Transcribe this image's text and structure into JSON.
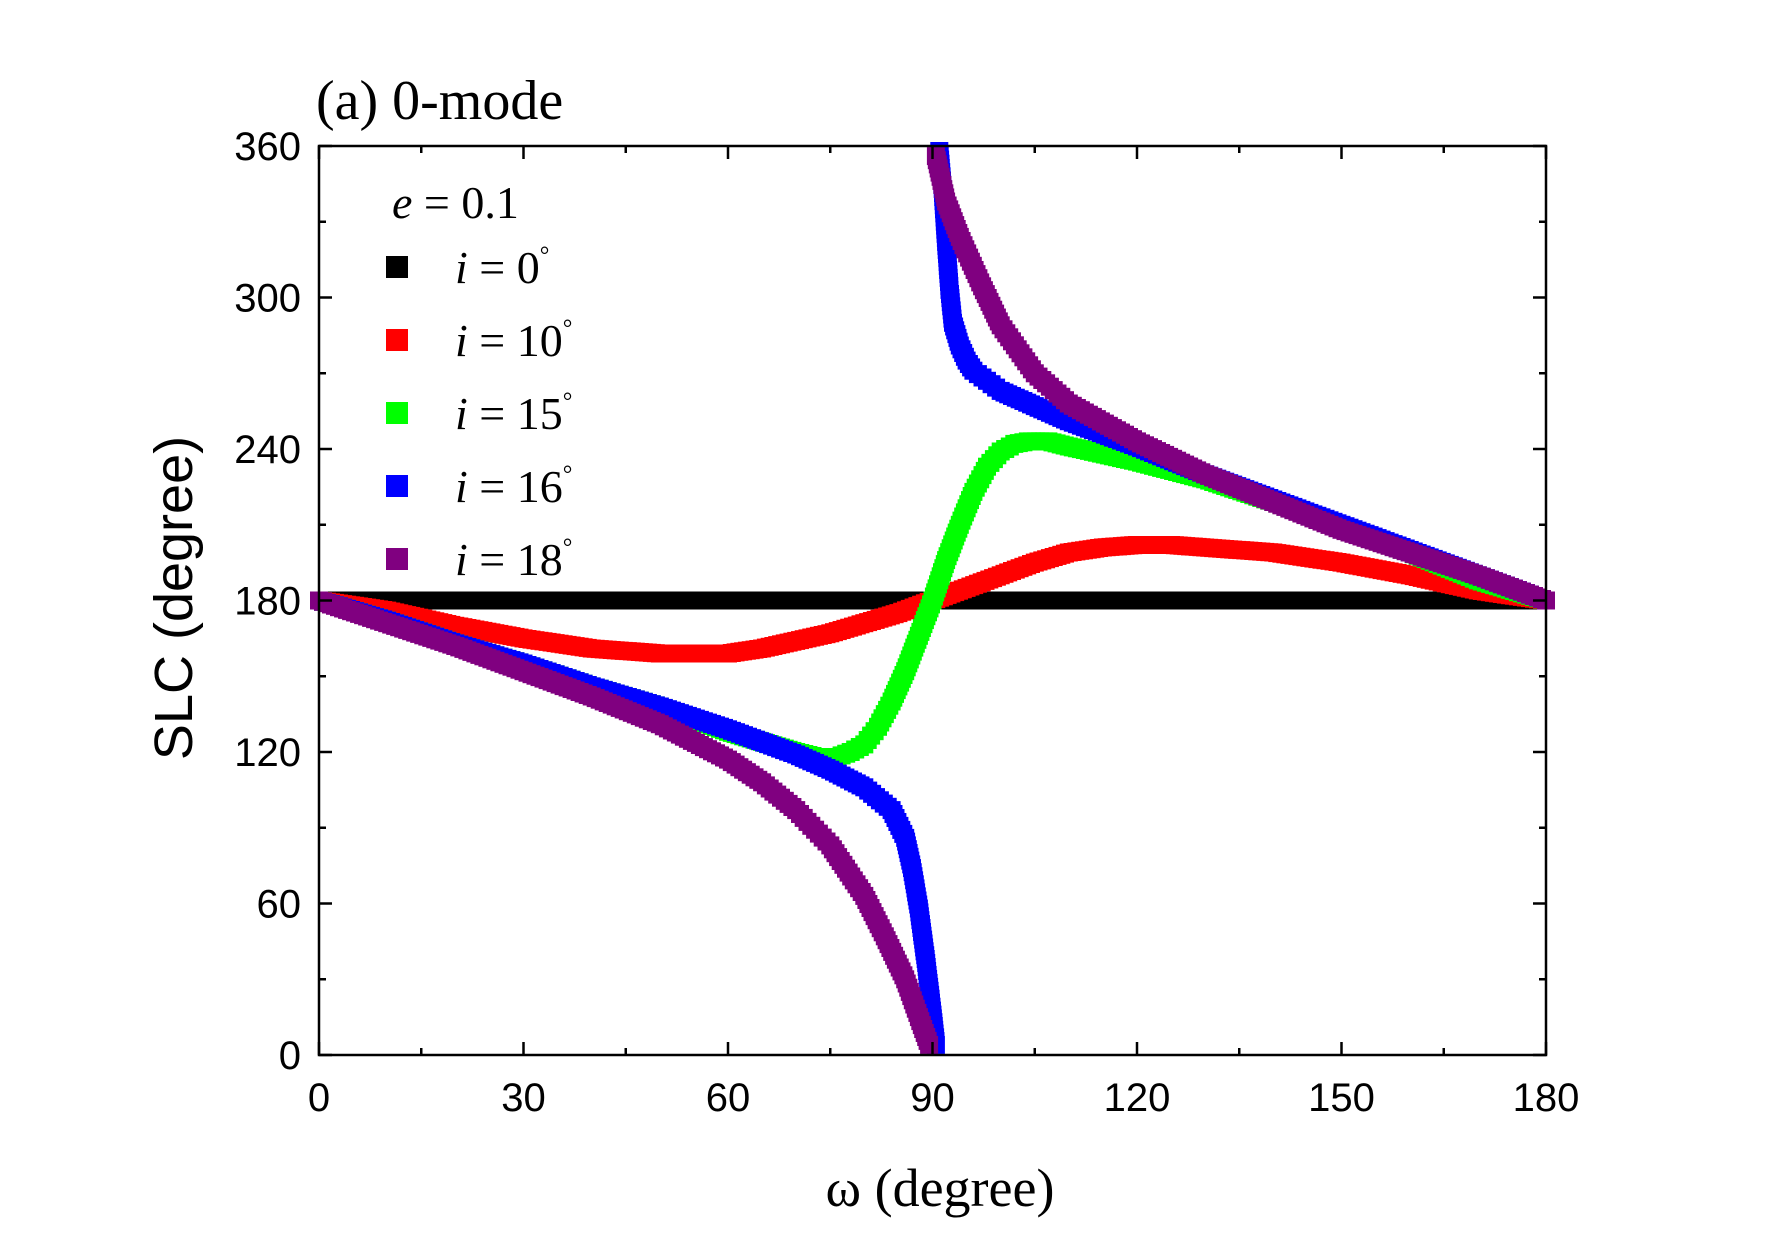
{
  "chart_data": {
    "type": "scatter",
    "title": "(a) 0-mode",
    "xlabel": "ω (degree)",
    "ylabel": "SLC (degree)",
    "xlim": [
      0,
      180
    ],
    "ylim": [
      0,
      360
    ],
    "xticks": [
      0,
      30,
      60,
      90,
      120,
      150,
      180
    ],
    "yticks": [
      0,
      60,
      120,
      180,
      240,
      300,
      360
    ],
    "grid": false,
    "legend_position": "top-left",
    "legend_header": {
      "var": "e",
      "eq": " = 0.1"
    },
    "marker": "square",
    "series": [
      {
        "name": "i = 0°",
        "label_var": "i",
        "label_eq": " = 0",
        "label_sup": "°",
        "color": "#000000",
        "x": [
          0,
          180
        ],
        "y": [
          180,
          180
        ]
      },
      {
        "name": "i = 10°",
        "label_var": "i",
        "label_eq": " = 10",
        "label_sup": "°",
        "color": "#ff0000",
        "x": [
          0,
          10,
          20,
          30,
          40,
          50,
          60,
          65,
          70,
          75,
          80,
          85,
          90,
          95,
          100,
          105,
          110,
          115,
          120,
          125,
          130,
          140,
          150,
          160,
          170,
          180
        ],
        "y": [
          180,
          176,
          170,
          165,
          161,
          159,
          159,
          161,
          164,
          167,
          171,
          175,
          180,
          185,
          190,
          195,
          199,
          201,
          202,
          202,
          201,
          199,
          195,
          190,
          184,
          180
        ]
      },
      {
        "name": "i = 15°",
        "label_var": "i",
        "label_eq": " = 15",
        "label_sup": "°",
        "color": "#00ff00",
        "x": [
          0,
          10,
          20,
          30,
          40,
          50,
          60,
          65,
          70,
          73,
          76,
          78,
          80,
          82,
          84,
          86,
          88,
          90,
          92,
          94,
          96,
          98,
          100,
          102,
          104,
          107,
          110,
          120,
          130,
          140,
          150,
          160,
          170,
          180
        ],
        "y": [
          180,
          172,
          163,
          155,
          146,
          138,
          128,
          124,
          120,
          118,
          118,
          120,
          123,
          130,
          140,
          152,
          166,
          180,
          196,
          210,
          223,
          233,
          239,
          242,
          243,
          243,
          241,
          235,
          228,
          219,
          209,
          199,
          188,
          180
        ]
      },
      {
        "name": "i = 16°",
        "label_var": "i",
        "label_eq": " = 16",
        "label_sup": "°",
        "color": "#0000ff",
        "x": [
          0,
          10,
          20,
          30,
          40,
          50,
          60,
          70,
          75,
          80,
          84,
          86,
          87,
          88,
          89,
          90,
          90.5,
          91,
          91.5,
          92,
          92.5,
          93,
          94,
          95,
          96,
          98,
          100,
          105,
          110,
          120,
          130,
          140,
          150,
          160,
          170,
          180
        ],
        "y": [
          180,
          172,
          163,
          155,
          146,
          138,
          129,
          119,
          113,
          106,
          97,
          86,
          74,
          58,
          38,
          16,
          4,
          358,
          343,
          322,
          303,
          290,
          281,
          275,
          271,
          267,
          263,
          257,
          251,
          241,
          230,
          220,
          210,
          200,
          190,
          180
        ]
      },
      {
        "name": "i = 18°",
        "label_var": "i",
        "label_eq": " = 18",
        "label_sup": "°",
        "color": "#800080",
        "x": [
          0,
          10,
          20,
          30,
          40,
          50,
          60,
          65,
          70,
          75,
          80,
          83,
          86,
          88,
          89.5,
          90.5,
          92,
          94,
          97,
          100,
          105,
          110,
          120,
          130,
          140,
          150,
          160,
          170,
          180
        ],
        "y": [
          180,
          171,
          162,
          152,
          142,
          131,
          117,
          108,
          97,
          83,
          63,
          47,
          30,
          15,
          4,
          356,
          338,
          324,
          306,
          289,
          270,
          258,
          243,
          230,
          219,
          208,
          199,
          190,
          180
        ]
      }
    ]
  }
}
